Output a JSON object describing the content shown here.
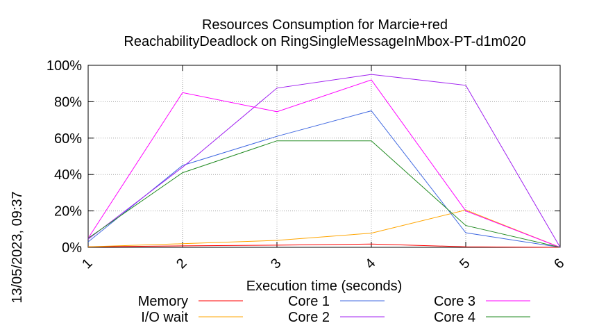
{
  "chart_data": {
    "type": "line",
    "title": "Resources Consumption for Marcie+red",
    "subtitle": "ReachabilityDeadlock on RingSingleMessageInMbox-PT-d1m020",
    "xlabel": "Execution time (seconds)",
    "ylabel": "",
    "timestamp": "13/05/2023, 09:37",
    "x": [
      1,
      2,
      3,
      4,
      5,
      6
    ],
    "xlim": [
      1,
      6
    ],
    "ylim": [
      0,
      100
    ],
    "x_ticks": [
      "1",
      "2",
      "3",
      "4",
      "5",
      "6"
    ],
    "y_ticks": [
      "0%",
      "20%",
      "40%",
      "60%",
      "80%",
      "100%"
    ],
    "grid": true,
    "legend_position": "bottom",
    "series": [
      {
        "name": "Memory",
        "color": "#ff0000",
        "values": [
          0.3,
          0.8,
          1.2,
          1.8,
          0.3,
          0
        ]
      },
      {
        "name": "I/O wait",
        "color": "#ffa500",
        "values": [
          0.3,
          2,
          3.8,
          7.8,
          20.5,
          0
        ]
      },
      {
        "name": "Core 1",
        "color": "#4169e1",
        "values": [
          3,
          45,
          61,
          75,
          8,
          0
        ]
      },
      {
        "name": "Core 2",
        "color": "#a020f0",
        "values": [
          4.5,
          44,
          87.5,
          95,
          89,
          0
        ]
      },
      {
        "name": "Core 3",
        "color": "#ff00ff",
        "values": [
          5,
          85,
          74.5,
          92,
          20,
          0
        ]
      },
      {
        "name": "Core 4",
        "color": "#228b22",
        "values": [
          5,
          41,
          58.5,
          58.5,
          12,
          0
        ]
      }
    ]
  }
}
